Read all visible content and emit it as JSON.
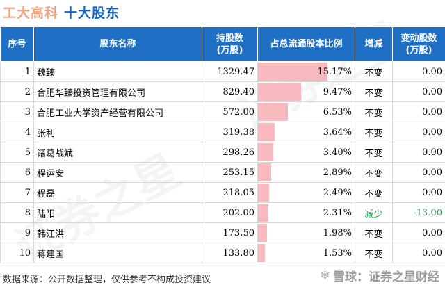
{
  "header": {
    "company": "工大高科",
    "subtitle": "十大股东"
  },
  "table": {
    "columns": [
      "序号",
      "股东名称",
      "持股数\n(万股)",
      "占总流通股本比例",
      "增减",
      "变动股数\n(万股)"
    ],
    "rows": [
      {
        "rank": "1",
        "name": "魏臻",
        "shares": "1329.47",
        "ratio": "15.17%",
        "ratio_value": 15.17,
        "change": "不变",
        "delta": "0.00"
      },
      {
        "rank": "2",
        "name": "合肥华臻投资管理有限公司",
        "shares": "829.40",
        "ratio": "9.47%",
        "ratio_value": 9.47,
        "change": "不变",
        "delta": "0.00"
      },
      {
        "rank": "3",
        "name": "合肥工业大学资产经营有限公司",
        "shares": "572.00",
        "ratio": "6.53%",
        "ratio_value": 6.53,
        "change": "不变",
        "delta": "0.00"
      },
      {
        "rank": "4",
        "name": "张利",
        "shares": "319.38",
        "ratio": "3.64%",
        "ratio_value": 3.64,
        "change": "不变",
        "delta": "0.00"
      },
      {
        "rank": "5",
        "name": "诸葛战斌",
        "shares": "298.26",
        "ratio": "3.40%",
        "ratio_value": 3.4,
        "change": "不变",
        "delta": "0.00"
      },
      {
        "rank": "6",
        "name": "程运安",
        "shares": "253.15",
        "ratio": "2.89%",
        "ratio_value": 2.89,
        "change": "不变",
        "delta": "0.00"
      },
      {
        "rank": "7",
        "name": "程磊",
        "shares": "218.05",
        "ratio": "2.49%",
        "ratio_value": 2.49,
        "change": "不变",
        "delta": "0.00"
      },
      {
        "rank": "8",
        "name": "陆阳",
        "shares": "202.00",
        "ratio": "2.31%",
        "ratio_value": 2.31,
        "change": "减少",
        "delta": "-13.00"
      },
      {
        "rank": "9",
        "name": "韩江洪",
        "shares": "173.50",
        "ratio": "1.98%",
        "ratio_value": 1.98,
        "change": "不变",
        "delta": "0.00"
      },
      {
        "rank": "10",
        "name": "蒋建国",
        "shares": "133.80",
        "ratio": "1.53%",
        "ratio_value": 1.53,
        "change": "不变",
        "delta": "0.00"
      }
    ]
  },
  "footer": {
    "source": "数据来源：公开数据整理，仅供参考不构成投资建议"
  },
  "brand": {
    "text": "雪球：证券之星财经"
  },
  "watermark": {
    "text": "证券之星"
  },
  "colors": {
    "header_bg": "#1f6fc5",
    "bar": "#f7b9bd",
    "decrease": "#1aa34a",
    "title_company": "#f0a37f",
    "title_subtitle": "#1565c0"
  }
}
